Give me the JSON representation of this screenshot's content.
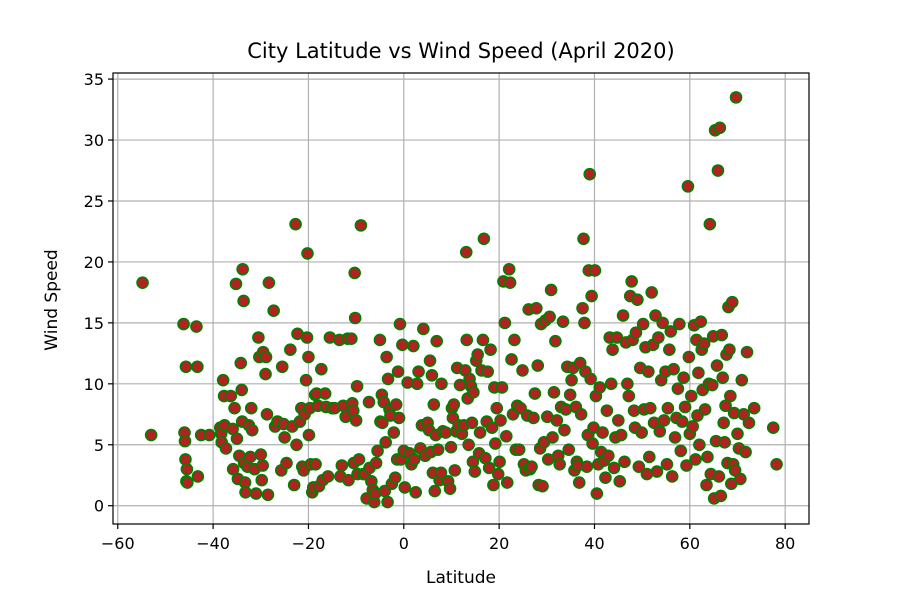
{
  "chart_data": {
    "type": "scatter",
    "title": "City Latitude vs Wind Speed (April 2020)",
    "xlabel": "Latitude",
    "ylabel": "Wind Speed",
    "xlim": [
      -61,
      85
    ],
    "ylim": [
      -1.5,
      35.5
    ],
    "xticks": [
      -60,
      -40,
      -20,
      0,
      20,
      40,
      60,
      80
    ],
    "yticks": [
      0,
      5,
      10,
      15,
      20,
      25,
      30,
      35
    ],
    "grid": true,
    "legend": "none",
    "marker": {
      "fill": "#b22222",
      "edge": "#008000"
    },
    "points": [
      [
        -54.8,
        18.3
      ],
      [
        -53,
        5.8
      ],
      [
        -46.2,
        14.9
      ],
      [
        -46,
        6.0
      ],
      [
        -45.9,
        5.3
      ],
      [
        -45.8,
        3.8
      ],
      [
        -45.5,
        3.0
      ],
      [
        -45.6,
        2.0
      ],
      [
        -45.4,
        1.9
      ],
      [
        -45.7,
        11.4
      ],
      [
        -43.5,
        14.7
      ],
      [
        -43.3,
        11.4
      ],
      [
        -43.2,
        2.4
      ],
      [
        -42.5,
        5.8
      ],
      [
        -40.8,
        5.8
      ],
      [
        -38.5,
        6.4
      ],
      [
        -38.3,
        5.9
      ],
      [
        -38.2,
        5.2
      ],
      [
        -37.9,
        10.3
      ],
      [
        -37.7,
        9.0
      ],
      [
        -37.6,
        6.6
      ],
      [
        -37.3,
        4.7
      ],
      [
        -36.3,
        9.0
      ],
      [
        -35.9,
        6.3
      ],
      [
        -35.8,
        3.0
      ],
      [
        -35.5,
        8.0
      ],
      [
        -35.2,
        18.2
      ],
      [
        -35,
        5.5
      ],
      [
        -34.8,
        2.2
      ],
      [
        -34.5,
        4.1
      ],
      [
        -34.2,
        11.7
      ],
      [
        -34,
        9.5
      ],
      [
        -33.9,
        6.9
      ],
      [
        -33.8,
        19.4
      ],
      [
        -33.6,
        16.8
      ],
      [
        -33.5,
        3.5
      ],
      [
        -33.3,
        1.9
      ],
      [
        -33.2,
        1.1
      ],
      [
        -32.8,
        3.2
      ],
      [
        -32.5,
        6.6
      ],
      [
        -32.2,
        4.0
      ],
      [
        -32,
        8.0
      ],
      [
        -31.8,
        6.2
      ],
      [
        -31.3,
        3.0
      ],
      [
        -31,
        1.0
      ],
      [
        -30.5,
        13.8
      ],
      [
        -30.3,
        12.2
      ],
      [
        -30,
        4.2
      ],
      [
        -29.8,
        2.1
      ],
      [
        -29.6,
        3.3
      ],
      [
        -29.5,
        12.6
      ],
      [
        -29,
        10.8
      ],
      [
        -28.9,
        12.2
      ],
      [
        -28.7,
        7.5
      ],
      [
        -28.5,
        0.9
      ],
      [
        -28.3,
        18.3
      ],
      [
        -27.3,
        16.0
      ],
      [
        -27,
        6.5
      ],
      [
        -26.5,
        6.9
      ],
      [
        -25.7,
        2.9
      ],
      [
        -25.5,
        11.4
      ],
      [
        -25.2,
        6.7
      ],
      [
        -25,
        5.6
      ],
      [
        -24.6,
        3.5
      ],
      [
        -23.8,
        12.8
      ],
      [
        -23.4,
        6.5
      ],
      [
        -23,
        1.7
      ],
      [
        -22.7,
        23.1
      ],
      [
        -22.5,
        5.0
      ],
      [
        -22.3,
        14.1
      ],
      [
        -21.8,
        6.9
      ],
      [
        -21.5,
        8.0
      ],
      [
        -21.3,
        3.2
      ],
      [
        -21,
        2.9
      ],
      [
        -20.8,
        7.5
      ],
      [
        -20.5,
        10.3
      ],
      [
        -20.3,
        13.8
      ],
      [
        -20.2,
        20.7
      ],
      [
        -20,
        12.2
      ],
      [
        -19.9,
        5.8
      ],
      [
        -19.7,
        8.0
      ],
      [
        -19.5,
        3.4
      ],
      [
        -19.2,
        1.1
      ],
      [
        -19,
        1.5
      ],
      [
        -18.6,
        9.1
      ],
      [
        -18.5,
        3.4
      ],
      [
        -18.3,
        9.2
      ],
      [
        -18,
        8.2
      ],
      [
        -17.8,
        1.6
      ],
      [
        -17.3,
        11.2
      ],
      [
        -17,
        2.1
      ],
      [
        -16.5,
        9.2
      ],
      [
        -16.3,
        8.1
      ],
      [
        -15.9,
        2.4
      ],
      [
        -15.5,
        13.8
      ],
      [
        -15,
        8.0
      ],
      [
        -14.5,
        8.0
      ],
      [
        -13.5,
        13.6
      ],
      [
        -13.3,
        2.4
      ],
      [
        -13,
        3.3
      ],
      [
        -12.7,
        8.2
      ],
      [
        -12.2,
        7.3
      ],
      [
        -11.8,
        13.7
      ],
      [
        -11.6,
        2.1
      ],
      [
        -11,
        13.7
      ],
      [
        -10.8,
        8.4
      ],
      [
        -10.6,
        7.8
      ],
      [
        -10.5,
        3.5
      ],
      [
        -10.3,
        19.1
      ],
      [
        -10.2,
        15.4
      ],
      [
        -10,
        7.0
      ],
      [
        -9.8,
        9.8
      ],
      [
        -9.7,
        2.6
      ],
      [
        -9.4,
        3.8
      ],
      [
        -9,
        23.0
      ],
      [
        -8.5,
        2.6
      ],
      [
        -8.2,
        2.6
      ],
      [
        -7.8,
        0.6
      ],
      [
        -7.3,
        8.5
      ],
      [
        -7.2,
        3.1
      ],
      [
        -6.8,
        2.0
      ],
      [
        -6.5,
        1.3
      ],
      [
        -6.2,
        0.3
      ],
      [
        -6,
        1.0
      ],
      [
        -5.8,
        3.5
      ],
      [
        -5.5,
        4.5
      ],
      [
        -5,
        13.6
      ],
      [
        -4.9,
        6.9
      ],
      [
        -4.6,
        9.1
      ],
      [
        -4.5,
        6.8
      ],
      [
        -4.2,
        8.5
      ],
      [
        -4,
        1.2
      ],
      [
        -3.8,
        5.2
      ],
      [
        -3.6,
        12.2
      ],
      [
        -3.4,
        0.3
      ],
      [
        -3.3,
        10.4
      ],
      [
        -3,
        7.9
      ],
      [
        -2.8,
        7.4
      ],
      [
        -2.5,
        1.8
      ],
      [
        -2.1,
        6.0
      ],
      [
        -1.8,
        2.3
      ],
      [
        -1.6,
        8.3
      ],
      [
        -1.4,
        3.8
      ],
      [
        -1.2,
        11.0
      ],
      [
        -1,
        7.2
      ],
      [
        -0.8,
        14.9
      ],
      [
        -0.6,
        3.8
      ],
      [
        -0.3,
        13.2
      ],
      [
        0,
        4.5
      ],
      [
        0.2,
        1.5
      ],
      [
        0.8,
        10.1
      ],
      [
        1.2,
        4.3
      ],
      [
        1.6,
        3.4
      ],
      [
        2,
        13.1
      ],
      [
        2.2,
        3.8
      ],
      [
        2.5,
        1.1
      ],
      [
        2.8,
        10.0
      ],
      [
        3.1,
        11.0
      ],
      [
        3.5,
        4.7
      ],
      [
        3.8,
        6.6
      ],
      [
        4.1,
        14.5
      ],
      [
        4.5,
        4.1
      ],
      [
        5,
        6.8
      ],
      [
        5.3,
        6.2
      ],
      [
        5.5,
        11.9
      ],
      [
        5.7,
        4.4
      ],
      [
        5.9,
        10.7
      ],
      [
        6.1,
        2.7
      ],
      [
        6.3,
        8.3
      ],
      [
        6.5,
        1.2
      ],
      [
        6.7,
        5.8
      ],
      [
        6.9,
        13.5
      ],
      [
        7.2,
        4.6
      ],
      [
        7.5,
        2.1
      ],
      [
        7.8,
        2.7
      ],
      [
        7.9,
        10.0
      ],
      [
        8.2,
        6.1
      ],
      [
        8.8,
        6.0
      ],
      [
        9.3,
        2.0
      ],
      [
        9.7,
        1.4
      ],
      [
        9.9,
        4.8
      ],
      [
        10.1,
        8.0
      ],
      [
        10.3,
        7.2
      ],
      [
        10.5,
        8.3
      ],
      [
        10.7,
        2.9
      ],
      [
        11,
        6.1
      ],
      [
        11.2,
        11.3
      ],
      [
        11.5,
        6.6
      ],
      [
        11.8,
        9.9
      ],
      [
        12.2,
        5.9
      ],
      [
        12.6,
        6.6
      ],
      [
        12.9,
        11.1
      ],
      [
        13.1,
        20.8
      ],
      [
        13.2,
        13.6
      ],
      [
        13.4,
        8.8
      ],
      [
        13.6,
        5.0
      ],
      [
        13.8,
        10.4
      ],
      [
        14.1,
        9.8
      ],
      [
        14.3,
        6.8
      ],
      [
        14.5,
        3.6
      ],
      [
        14.6,
        9.3
      ],
      [
        14.9,
        2.8
      ],
      [
        15.2,
        11.9
      ],
      [
        15.5,
        12.4
      ],
      [
        15.8,
        4.3
      ],
      [
        16,
        6.0
      ],
      [
        16.3,
        11.1
      ],
      [
        16.6,
        13.6
      ],
      [
        16.8,
        21.9
      ],
      [
        17.1,
        3.9
      ],
      [
        17.4,
        6.9
      ],
      [
        17.6,
        11.0
      ],
      [
        17.9,
        3.1
      ],
      [
        18.2,
        12.8
      ],
      [
        18.5,
        6.4
      ],
      [
        18.8,
        1.7
      ],
      [
        19,
        9.7
      ],
      [
        19.2,
        5.1
      ],
      [
        19.5,
        8.0
      ],
      [
        19.8,
        2.6
      ],
      [
        20.1,
        3.6
      ],
      [
        20.3,
        7.0
      ],
      [
        20.6,
        9.7
      ],
      [
        20.9,
        18.4
      ],
      [
        21.2,
        15.0
      ],
      [
        21.5,
        5.7
      ],
      [
        21.7,
        1.9
      ],
      [
        22.1,
        19.4
      ],
      [
        22.3,
        18.3
      ],
      [
        22.6,
        12.0
      ],
      [
        22.9,
        7.5
      ],
      [
        23.2,
        13.6
      ],
      [
        23.5,
        4.6
      ],
      [
        23.8,
        8.2
      ],
      [
        24.2,
        4.6
      ],
      [
        24.5,
        8.0
      ],
      [
        24.9,
        11.1
      ],
      [
        25.2,
        3.4
      ],
      [
        25.6,
        2.9
      ],
      [
        25.9,
        7.4
      ],
      [
        26.2,
        16.1
      ],
      [
        26.5,
        3.0
      ],
      [
        26.8,
        3.2
      ],
      [
        27.2,
        7.2
      ],
      [
        27.5,
        9.2
      ],
      [
        27.8,
        16.2
      ],
      [
        28.1,
        11.5
      ],
      [
        28.3,
        1.7
      ],
      [
        28.6,
        4.7
      ],
      [
        28.8,
        14.9
      ],
      [
        29.1,
        1.6
      ],
      [
        29.4,
        5.2
      ],
      [
        29.7,
        15.2
      ],
      [
        30.1,
        7.3
      ],
      [
        30.3,
        3.8
      ],
      [
        30.6,
        15.5
      ],
      [
        30.9,
        17.7
      ],
      [
        31.2,
        5.6
      ],
      [
        31.5,
        9.3
      ],
      [
        31.8,
        13.5
      ],
      [
        32.1,
        7.0
      ],
      [
        32.4,
        4.1
      ],
      [
        32.7,
        3.4
      ],
      [
        33,
        8.1
      ],
      [
        33.4,
        15.1
      ],
      [
        33.7,
        6.2
      ],
      [
        34,
        7.9
      ],
      [
        34.3,
        11.4
      ],
      [
        34.6,
        4.6
      ],
      [
        34.9,
        9.1
      ],
      [
        35.2,
        10.3
      ],
      [
        35.5,
        11.3
      ],
      [
        35.8,
        2.9
      ],
      [
        36.1,
        8.1
      ],
      [
        36.3,
        3.6
      ],
      [
        36.5,
        3.3
      ],
      [
        36.8,
        1.9
      ],
      [
        37,
        11.7
      ],
      [
        37.2,
        7.5
      ],
      [
        37.5,
        16.2
      ],
      [
        37.7,
        21.9
      ],
      [
        37.9,
        15.0
      ],
      [
        38.1,
        11.0
      ],
      [
        38.4,
        3.2
      ],
      [
        38.6,
        5.8
      ],
      [
        38.8,
        19.3
      ],
      [
        39,
        27.2
      ],
      [
        39.2,
        10.4
      ],
      [
        39.4,
        17.2
      ],
      [
        39.6,
        5.1
      ],
      [
        39.8,
        6.4
      ],
      [
        40.1,
        19.3
      ],
      [
        40.3,
        9.0
      ],
      [
        40.5,
        1.0
      ],
      [
        40.8,
        3.4
      ],
      [
        41.1,
        9.7
      ],
      [
        41.4,
        4.4
      ],
      [
        41.7,
        6.0
      ],
      [
        42,
        3.7
      ],
      [
        42.3,
        2.3
      ],
      [
        42.6,
        7.8
      ],
      [
        42.9,
        4.1
      ],
      [
        43.2,
        13.8
      ],
      [
        43.5,
        10.0
      ],
      [
        43.8,
        12.8
      ],
      [
        44.1,
        3.1
      ],
      [
        44.4,
        5.6
      ],
      [
        44.7,
        13.8
      ],
      [
        45,
        7.0
      ],
      [
        45.3,
        2.0
      ],
      [
        45.6,
        5.8
      ],
      [
        46,
        15.6
      ],
      [
        46.3,
        3.6
      ],
      [
        46.6,
        13.4
      ],
      [
        46.9,
        10.0
      ],
      [
        47.2,
        9.0
      ],
      [
        47.5,
        17.2
      ],
      [
        47.8,
        18.4
      ],
      [
        48,
        13.6
      ],
      [
        48.3,
        7.8
      ],
      [
        48.5,
        6.4
      ],
      [
        48.7,
        14.2
      ],
      [
        49,
        16.9
      ],
      [
        49.3,
        3.2
      ],
      [
        49.6,
        11.3
      ],
      [
        49.9,
        6.0
      ],
      [
        50.2,
        14.9
      ],
      [
        50.4,
        7.9
      ],
      [
        50.7,
        13.0
      ],
      [
        51,
        2.6
      ],
      [
        51.3,
        11.0
      ],
      [
        51.5,
        4.0
      ],
      [
        51.7,
        8.0
      ],
      [
        52,
        17.5
      ],
      [
        52.3,
        13.2
      ],
      [
        52.5,
        6.8
      ],
      [
        52.8,
        15.6
      ],
      [
        53.1,
        2.8
      ],
      [
        53.4,
        13.8
      ],
      [
        53.7,
        6.1
      ],
      [
        54,
        10.3
      ],
      [
        54.3,
        15.0
      ],
      [
        54.6,
        7.0
      ],
      [
        54.9,
        11.0
      ],
      [
        55.2,
        3.4
      ],
      [
        55.4,
        8.0
      ],
      [
        55.7,
        12.8
      ],
      [
        56,
        14.3
      ],
      [
        56.3,
        2.4
      ],
      [
        56.6,
        11.2
      ],
      [
        56.9,
        5.6
      ],
      [
        57.2,
        7.2
      ],
      [
        57.5,
        9.6
      ],
      [
        57.8,
        14.9
      ],
      [
        58.1,
        4.5
      ],
      [
        58.4,
        6.9
      ],
      [
        58.7,
        10.5
      ],
      [
        59,
        8.1
      ],
      [
        59.3,
        3.3
      ],
      [
        59.6,
        26.2
      ],
      [
        59.8,
        12.2
      ],
      [
        60,
        5.9
      ],
      [
        60.3,
        9.0
      ],
      [
        60.6,
        6.5
      ],
      [
        60.9,
        14.8
      ],
      [
        61.2,
        3.8
      ],
      [
        61.4,
        13.6
      ],
      [
        61.6,
        7.4
      ],
      [
        61.8,
        10.9
      ],
      [
        62,
        5.0
      ],
      [
        62.3,
        15.1
      ],
      [
        62.5,
        12.8
      ],
      [
        62.7,
        9.5
      ],
      [
        63,
        13.3
      ],
      [
        63.2,
        7.9
      ],
      [
        63.5,
        1.7
      ],
      [
        63.7,
        4.0
      ],
      [
        64,
        10.0
      ],
      [
        64.2,
        23.1
      ],
      [
        64.4,
        2.6
      ],
      [
        64.7,
        9.9
      ],
      [
        64.9,
        13.9
      ],
      [
        65.1,
        0.6
      ],
      [
        65.3,
        30.8
      ],
      [
        65.5,
        5.3
      ],
      [
        65.7,
        11.5
      ],
      [
        65.9,
        27.5
      ],
      [
        66.1,
        2.4
      ],
      [
        66.3,
        31.0
      ],
      [
        66.5,
        0.8
      ],
      [
        66.7,
        14.0
      ],
      [
        66.9,
        10.5
      ],
      [
        67.1,
        6.8
      ],
      [
        67.3,
        5.2
      ],
      [
        67.5,
        8.2
      ],
      [
        67.7,
        12.4
      ],
      [
        67.9,
        3.5
      ],
      [
        68.1,
        16.3
      ],
      [
        68.3,
        12.8
      ],
      [
        68.5,
        9.0
      ],
      [
        68.7,
        1.8
      ],
      [
        68.9,
        16.7
      ],
      [
        69.1,
        3.4
      ],
      [
        69.3,
        7.6
      ],
      [
        69.5,
        2.9
      ],
      [
        69.7,
        33.5
      ],
      [
        70,
        5.9
      ],
      [
        70.3,
        4.7
      ],
      [
        70.6,
        2.2
      ],
      [
        70.9,
        10.3
      ],
      [
        71.3,
        7.5
      ],
      [
        71.7,
        4.4
      ],
      [
        72,
        12.6
      ],
      [
        72.4,
        6.8
      ],
      [
        73.5,
        8.0
      ],
      [
        77.5,
        6.4
      ],
      [
        78.2,
        3.4
      ]
    ]
  }
}
